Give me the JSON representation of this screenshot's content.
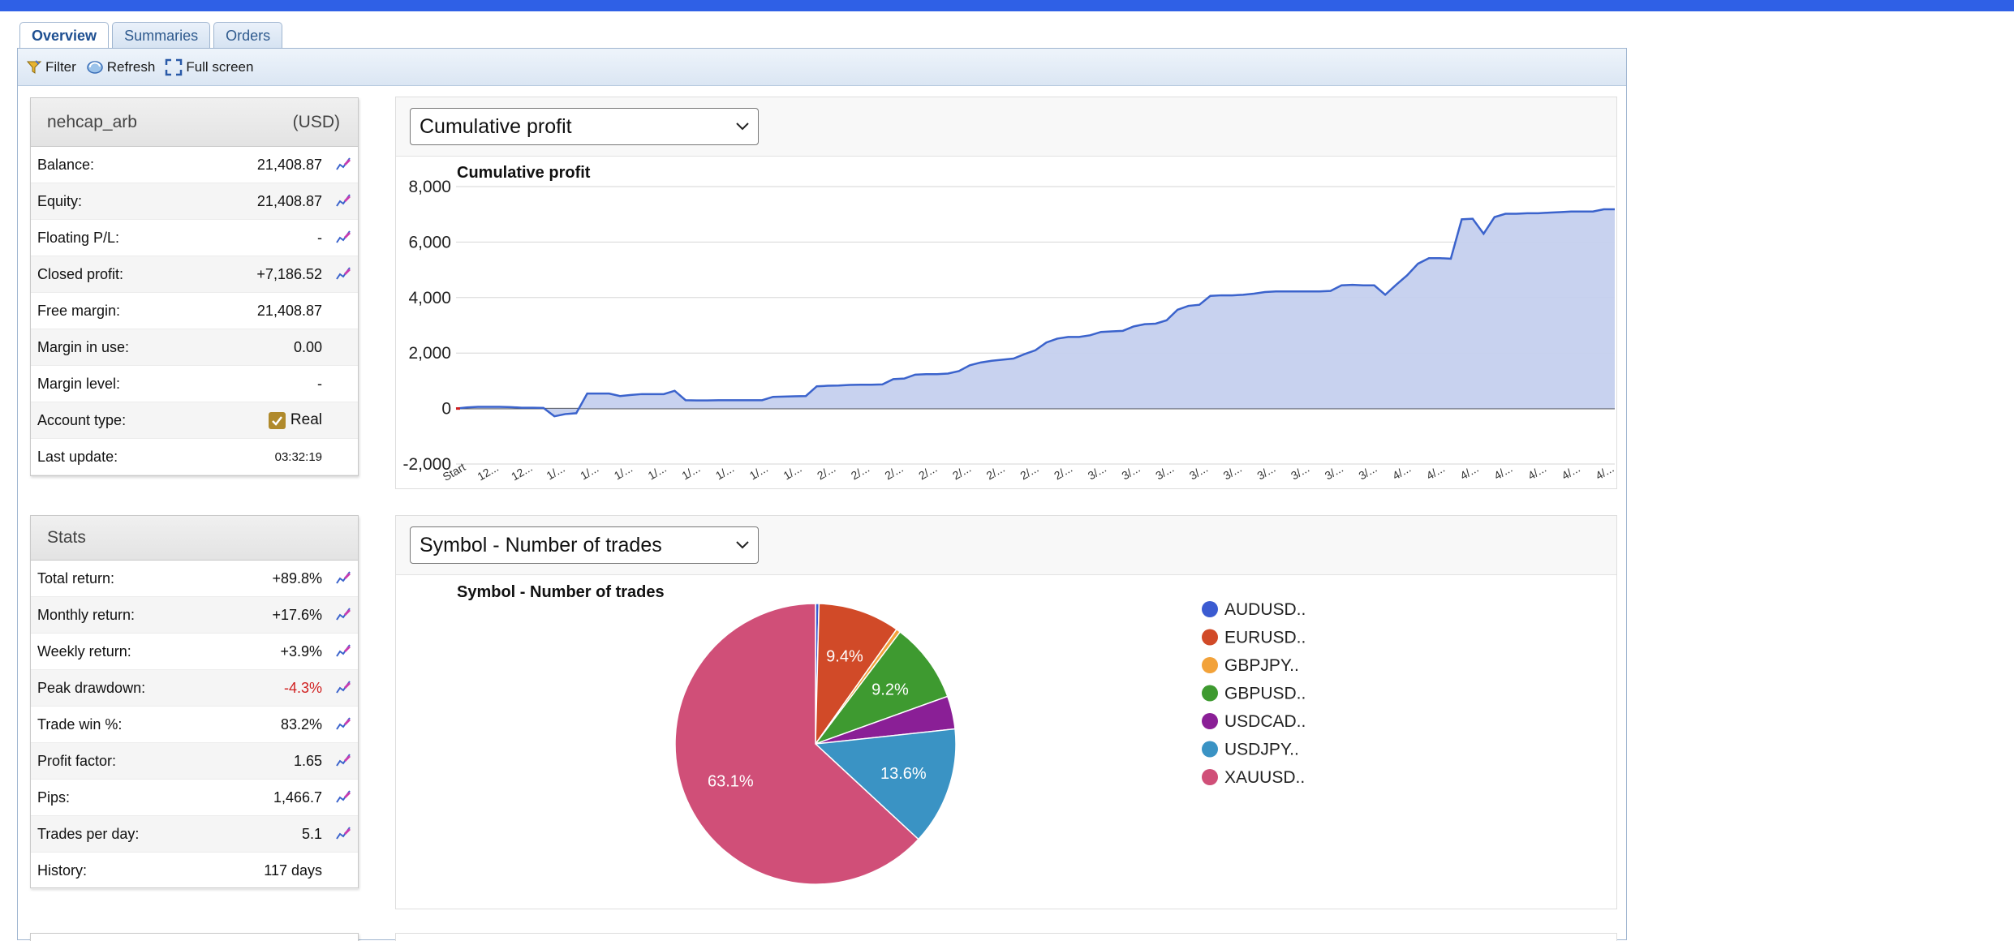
{
  "tabs": [
    "Overview",
    "Summaries",
    "Orders"
  ],
  "toolbar": {
    "filter": "Filter",
    "refresh": "Refresh",
    "fullscreen": "Full screen"
  },
  "account": {
    "name": "nehcap_arb",
    "currency": "(USD)",
    "rows": [
      {
        "label": "Balance:",
        "value": "21,408.87"
      },
      {
        "label": "Equity:",
        "value": "21,408.87"
      },
      {
        "label": "Floating P/L:",
        "value": "-"
      },
      {
        "label": "Closed profit:",
        "value": "+7,186.52"
      },
      {
        "label": "Free margin:",
        "value": "21,408.87"
      },
      {
        "label": "Margin in use:",
        "value": "0.00"
      },
      {
        "label": "Margin level:",
        "value": "-"
      },
      {
        "label": "Account type:",
        "value": "Real"
      },
      {
        "label": "Last update:",
        "value": "03:32:19"
      }
    ]
  },
  "stats": {
    "title": "Stats",
    "rows": [
      {
        "label": "Total return:",
        "value": "+89.8%"
      },
      {
        "label": "Monthly return:",
        "value": "+17.6%"
      },
      {
        "label": "Weekly return:",
        "value": "+3.9%"
      },
      {
        "label": "Peak drawdown:",
        "value": "-4.3%"
      },
      {
        "label": "Trade win %:",
        "value": "83.2%"
      },
      {
        "label": "Profit factor:",
        "value": "1.65"
      },
      {
        "label": "Pips:",
        "value": "1,466.7"
      },
      {
        "label": "Trades per day:",
        "value": "5.1"
      },
      {
        "label": "History:",
        "value": "117 days"
      }
    ]
  },
  "profit_select": "Cumulative profit",
  "pie_select": "Symbol - Number of trades",
  "colors": {
    "line": "#3b63cc",
    "fill": "#c5d0ee",
    "negative": "#d02020",
    "tab_active": "#1e4f91",
    "topbar": "#2f60e6"
  },
  "chart_data": [
    {
      "type": "area",
      "title": "Cumulative profit",
      "ylim": [
        -2000,
        8000
      ],
      "yticks": [
        "8,000",
        "6,000",
        "4,000",
        "2,000",
        "0",
        "-2,000"
      ],
      "xtick_labels": [
        "Start",
        "12...",
        "12...",
        "1/...",
        "1/...",
        "1/...",
        "1/...",
        "1/...",
        "1/...",
        "1/...",
        "1/...",
        "2/...",
        "2/...",
        "2/...",
        "2/...",
        "2/...",
        "2/...",
        "2/...",
        "2/...",
        "3/...",
        "3/...",
        "3/...",
        "3/...",
        "3/...",
        "3/...",
        "3/...",
        "3/...",
        "3/...",
        "4/...",
        "4/...",
        "4/...",
        "4/...",
        "4/...",
        "4/...",
        "4/..."
      ],
      "values": [
        0,
        40,
        60,
        60,
        60,
        50,
        30,
        30,
        20,
        -280,
        -200,
        -170,
        540,
        540,
        540,
        450,
        490,
        520,
        520,
        520,
        640,
        300,
        290,
        290,
        300,
        300,
        300,
        300,
        300,
        420,
        430,
        440,
        450,
        800,
        820,
        830,
        850,
        860,
        860,
        870,
        1060,
        1080,
        1220,
        1240,
        1240,
        1260,
        1350,
        1560,
        1660,
        1720,
        1760,
        1800,
        1960,
        2100,
        2380,
        2520,
        2580,
        2580,
        2640,
        2760,
        2780,
        2800,
        2960,
        3040,
        3060,
        3180,
        3560,
        3700,
        3740,
        4060,
        4080,
        4080,
        4100,
        4140,
        4200,
        4220,
        4220,
        4220,
        4220,
        4220,
        4240,
        4440,
        4460,
        4440,
        4440,
        4100,
        4460,
        4800,
        5220,
        5420,
        5420,
        5400,
        6820,
        6840,
        6300,
        6900,
        7020,
        7020,
        7040,
        7040,
        7060,
        7080,
        7100,
        7100,
        7100,
        7180,
        7180
      ]
    },
    {
      "type": "pie",
      "title": "Symbol - Number of trades",
      "labels": [
        "AUDUSD..",
        "EURUSD..",
        "GBPJPY..",
        "GBPUSD..",
        "USDCAD..",
        "USDJPY..",
        "XAUUSD.."
      ],
      "values": [
        0.4,
        9.4,
        0.5,
        9.2,
        3.8,
        13.6,
        63.1
      ],
      "slice_labels": [
        "",
        "9.4%",
        "",
        "9.2%",
        "",
        "13.6%",
        "63.1%"
      ],
      "colors": [
        "#3b5bd1",
        "#d14a28",
        "#f2a23a",
        "#3e9a30",
        "#8a1f96",
        "#3a93c4",
        "#d04f78"
      ]
    }
  ]
}
